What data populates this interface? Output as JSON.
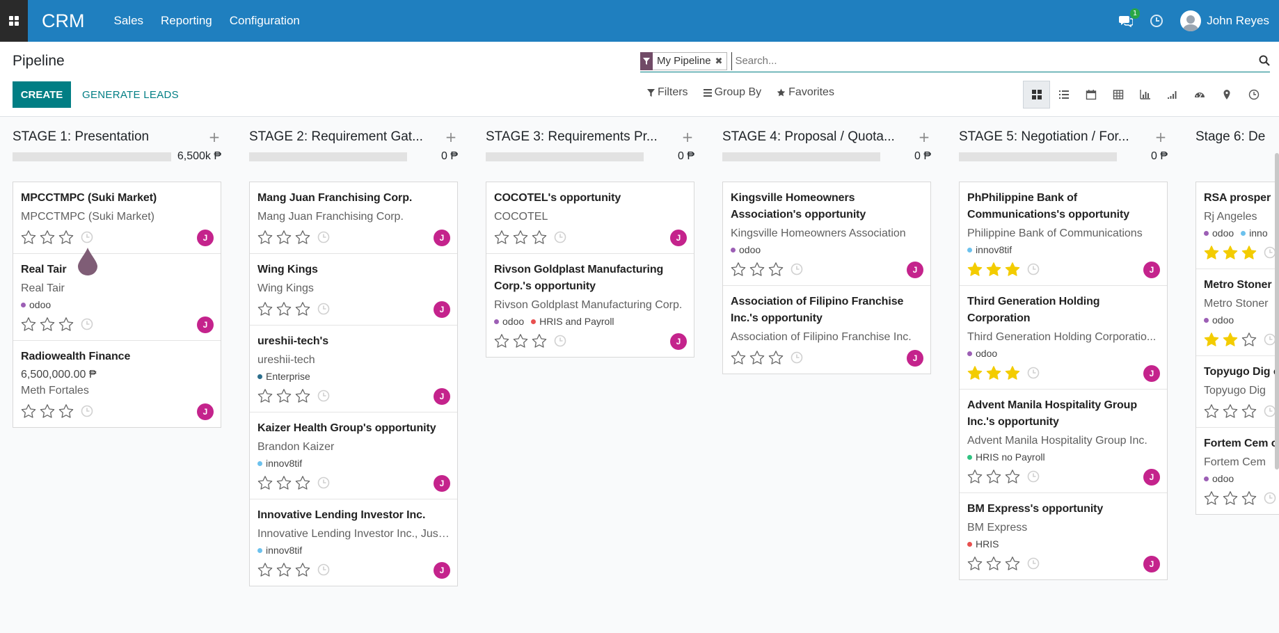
{
  "navbar": {
    "brand": "CRM",
    "menu": [
      "Sales",
      "Reporting",
      "Configuration"
    ],
    "chat_badge": "1",
    "user_name": "John Reyes",
    "bg": "#1f7fbf"
  },
  "control": {
    "title": "Pipeline",
    "create_label": "CREATE",
    "generate_label": "GENERATE LEADS",
    "facet_label": "My Pipeline",
    "search_placeholder": "Search...",
    "filters_label": "Filters",
    "groupby_label": "Group By",
    "favorites_label": "Favorites",
    "views": [
      "kanban-icon",
      "list-icon",
      "calendar-icon",
      "pivot-icon",
      "graph-icon",
      "cohort-icon",
      "dashboard-icon",
      "map-icon",
      "activity-icon"
    ]
  },
  "columns": [
    {
      "title": "STAGE 1: Presentation",
      "total": "6,500k ₱",
      "progress": 0,
      "cards": [
        {
          "name": "MPCCTMPC (Suki Market)",
          "sub": "MPCCTMPC (Suki Market)",
          "amount": "",
          "sub2": "",
          "tags": [],
          "stars": 0
        },
        {
          "name": "Real Tair",
          "sub": "Real Tair",
          "amount": "",
          "sub2": "",
          "tags": [
            {
              "label": "odoo",
              "color": "#9c5fb5"
            }
          ],
          "stars": 0
        },
        {
          "name": "Radiowealth Finance",
          "sub": "",
          "amount": "6,500,000.00 ₱",
          "sub2": "Meth Fortales",
          "tags": [],
          "stars": 0
        }
      ]
    },
    {
      "title": "STAGE 2: Requirement Gat...",
      "total": "0 ₱",
      "progress": 0,
      "cards": [
        {
          "name": "Mang Juan Franchising Corp.",
          "sub": "Mang Juan Franchising Corp.",
          "amount": "",
          "sub2": "",
          "tags": [],
          "stars": 0
        },
        {
          "name": "Wing Kings",
          "sub": "Wing Kings",
          "amount": "",
          "sub2": "",
          "tags": [],
          "stars": 0
        },
        {
          "name": "ureshii-tech's",
          "sub": "ureshii-tech",
          "amount": "",
          "sub2": "",
          "tags": [
            {
              "label": "Enterprise",
              "color": "#2c6e8c"
            }
          ],
          "stars": 0
        },
        {
          "name": "Kaizer Health Group's opportunity",
          "sub": "Brandon Kaizer",
          "amount": "",
          "sub2": "",
          "tags": [
            {
              "label": "innov8tif",
              "color": "#6cc1ed"
            }
          ],
          "stars": 0
        },
        {
          "name": "Innovative Lending Investor Inc.",
          "sub": "Innovative Lending Investor Inc., Just...",
          "amount": "",
          "sub2": "",
          "tags": [
            {
              "label": "innov8tif",
              "color": "#6cc1ed"
            }
          ],
          "stars": 0
        }
      ]
    },
    {
      "title": "STAGE 3: Requirements Pr...",
      "total": "0 ₱",
      "progress": 0,
      "cards": [
        {
          "name": "COCOTEL's opportunity",
          "sub": "COCOTEL",
          "amount": "",
          "sub2": "",
          "tags": [],
          "stars": 0
        },
        {
          "name": "Rivson Goldplast Manufacturing Corp.'s opportunity",
          "sub": "Rivson Goldplast Manufacturing Corp.",
          "amount": "",
          "sub2": "",
          "tags": [
            {
              "label": "odoo",
              "color": "#9c5fb5"
            },
            {
              "label": "HRIS and Payroll",
              "color": "#e8504f"
            }
          ],
          "stars": 0
        }
      ]
    },
    {
      "title": "STAGE 4: Proposal / Quota...",
      "total": "0 ₱",
      "progress": 0,
      "cards": [
        {
          "name": "Kingsville Homeowners Association's opportunity",
          "sub": "Kingsville Homeowners Association",
          "amount": "",
          "sub2": "",
          "tags": [
            {
              "label": "odoo",
              "color": "#9c5fb5"
            }
          ],
          "stars": 0
        },
        {
          "name": "Association of Filipino Franchise Inc.'s opportunity",
          "sub": "Association of Filipino Franchise Inc.",
          "amount": "",
          "sub2": "",
          "tags": [],
          "stars": 0
        }
      ]
    },
    {
      "title": "STAGE 5: Negotiation / For...",
      "total": "0 ₱",
      "progress": 0,
      "cards": [
        {
          "name": "PhPhilippine Bank of Communications's opportunity",
          "sub": "Philippine Bank of Communications",
          "amount": "",
          "sub2": "",
          "tags": [
            {
              "label": "innov8tif",
              "color": "#6cc1ed"
            }
          ],
          "stars": 3
        },
        {
          "name": "Third Generation Holding Corporation",
          "sub": "Third Generation Holding Corporatio...",
          "amount": "",
          "sub2": "",
          "tags": [
            {
              "label": "odoo",
              "color": "#9c5fb5"
            }
          ],
          "stars": 3
        },
        {
          "name": "Advent Manila Hospitality Group Inc.'s opportunity",
          "sub": "Advent Manila Hospitality Group Inc.",
          "amount": "",
          "sub2": "",
          "tags": [
            {
              "label": "HRIS no Payroll",
              "color": "#30c381"
            }
          ],
          "stars": 0
        },
        {
          "name": "BM Express's opportunity",
          "sub": "BM Express",
          "amount": "",
          "sub2": "",
          "tags": [
            {
              "label": "HRIS",
              "color": "#e8504f"
            }
          ],
          "stars": 0
        }
      ]
    },
    {
      "title": "Stage 6: De",
      "total": "",
      "progress": 0,
      "cards": [
        {
          "name": "RSA prosper",
          "sub": "Rj Angeles",
          "amount": "",
          "sub2": "",
          "tags": [
            {
              "label": "odoo",
              "color": "#9c5fb5"
            },
            {
              "label": "inno",
              "color": "#6cc1ed"
            }
          ],
          "stars": 3
        },
        {
          "name": "Metro Stoner opportunity",
          "sub": "Metro Stoner",
          "amount": "",
          "sub2": "",
          "tags": [
            {
              "label": "odoo",
              "color": "#9c5fb5"
            }
          ],
          "stars": 2
        },
        {
          "name": "Topyugo Dig opportunity",
          "sub": "Topyugo Dig",
          "amount": "",
          "sub2": "",
          "tags": [],
          "stars": 0
        },
        {
          "name": "Fortem Cem opportunity",
          "sub": "Fortem Cem",
          "amount": "",
          "sub2": "",
          "tags": [
            {
              "label": "odoo",
              "color": "#9c5fb5"
            }
          ],
          "stars": 0
        }
      ]
    }
  ],
  "assignee_initial": "J",
  "colors": {
    "accent": "#017e84",
    "avatar": "#c4238c",
    "star_filled": "#f3cc00",
    "facet": "#714b67"
  }
}
